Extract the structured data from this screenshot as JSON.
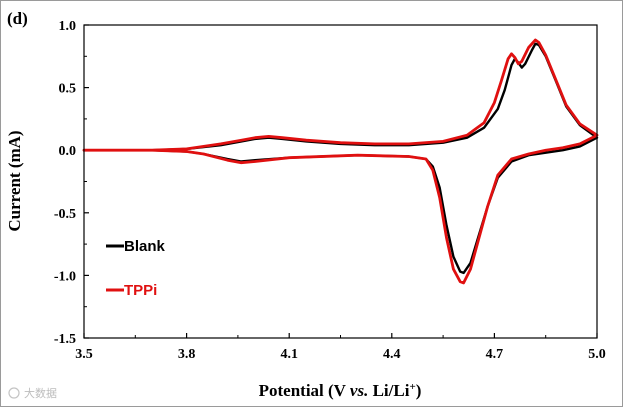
{
  "chart_data": {
    "type": "line",
    "panel_label": "(d)",
    "xlabel_parts": [
      "Potential (V ",
      "vs.",
      " Li/Li",
      "+",
      ")"
    ],
    "ylabel": "Current  (mA)",
    "xlim": [
      3.5,
      5.0
    ],
    "ylim": [
      -1.5,
      1.0
    ],
    "x_ticks": [
      3.5,
      3.8,
      4.1,
      4.4,
      4.7,
      5.0
    ],
    "x_tick_labels": [
      "3.5",
      "3.8",
      "4.1",
      "4.4",
      "4.7",
      "5.0"
    ],
    "y_ticks": [
      -1.5,
      -1.0,
      -0.5,
      0.0,
      0.5,
      1.0
    ],
    "y_tick_labels": [
      "-1.5",
      "-1.0",
      "-0.5",
      "0.0",
      "0.5",
      "1.0"
    ],
    "grid": false,
    "legend_position": "lower-left",
    "series": [
      {
        "name": "Blank",
        "color": "#000000",
        "anodic": [
          [
            3.5,
            0.0
          ],
          [
            3.7,
            0.0
          ],
          [
            3.8,
            0.01
          ],
          [
            3.9,
            0.04
          ],
          [
            3.96,
            0.07
          ],
          [
            4.0,
            0.09
          ],
          [
            4.04,
            0.1
          ],
          [
            4.08,
            0.09
          ],
          [
            4.15,
            0.07
          ],
          [
            4.25,
            0.05
          ],
          [
            4.35,
            0.04
          ],
          [
            4.45,
            0.04
          ],
          [
            4.55,
            0.06
          ],
          [
            4.62,
            0.1
          ],
          [
            4.67,
            0.18
          ],
          [
            4.71,
            0.33
          ],
          [
            4.73,
            0.48
          ],
          [
            4.75,
            0.68
          ],
          [
            4.76,
            0.73
          ],
          [
            4.77,
            0.7
          ],
          [
            4.78,
            0.66
          ],
          [
            4.79,
            0.69
          ],
          [
            4.81,
            0.8
          ],
          [
            4.82,
            0.85
          ],
          [
            4.83,
            0.84
          ],
          [
            4.85,
            0.75
          ],
          [
            4.88,
            0.55
          ],
          [
            4.91,
            0.35
          ],
          [
            4.95,
            0.2
          ],
          [
            5.0,
            0.1
          ]
        ],
        "cathodic": [
          [
            5.0,
            0.1
          ],
          [
            4.95,
            0.03
          ],
          [
            4.9,
            0.0
          ],
          [
            4.85,
            -0.02
          ],
          [
            4.8,
            -0.04
          ],
          [
            4.75,
            -0.09
          ],
          [
            4.71,
            -0.22
          ],
          [
            4.68,
            -0.45
          ],
          [
            4.65,
            -0.72
          ],
          [
            4.63,
            -0.9
          ],
          [
            4.61,
            -0.98
          ],
          [
            4.6,
            -0.97
          ],
          [
            4.58,
            -0.85
          ],
          [
            4.56,
            -0.6
          ],
          [
            4.54,
            -0.3
          ],
          [
            4.52,
            -0.13
          ],
          [
            4.5,
            -0.07
          ],
          [
            4.45,
            -0.05
          ],
          [
            4.3,
            -0.04
          ],
          [
            4.1,
            -0.06
          ],
          [
            4.0,
            -0.08
          ],
          [
            3.96,
            -0.09
          ],
          [
            3.92,
            -0.07
          ],
          [
            3.85,
            -0.03
          ],
          [
            3.8,
            -0.01
          ],
          [
            3.7,
            0.0
          ],
          [
            3.5,
            0.0
          ]
        ]
      },
      {
        "name": "TPPi",
        "color": "#e01010",
        "anodic": [
          [
            3.5,
            0.0
          ],
          [
            3.7,
            0.0
          ],
          [
            3.8,
            0.01
          ],
          [
            3.9,
            0.05
          ],
          [
            3.96,
            0.08
          ],
          [
            4.0,
            0.1
          ],
          [
            4.04,
            0.11
          ],
          [
            4.08,
            0.1
          ],
          [
            4.15,
            0.08
          ],
          [
            4.25,
            0.06
          ],
          [
            4.35,
            0.05
          ],
          [
            4.45,
            0.05
          ],
          [
            4.55,
            0.07
          ],
          [
            4.62,
            0.12
          ],
          [
            4.67,
            0.22
          ],
          [
            4.7,
            0.38
          ],
          [
            4.72,
            0.55
          ],
          [
            4.74,
            0.73
          ],
          [
            4.75,
            0.77
          ],
          [
            4.76,
            0.74
          ],
          [
            4.77,
            0.69
          ],
          [
            4.78,
            0.71
          ],
          [
            4.8,
            0.82
          ],
          [
            4.82,
            0.88
          ],
          [
            4.83,
            0.86
          ],
          [
            4.85,
            0.76
          ],
          [
            4.88,
            0.56
          ],
          [
            4.91,
            0.36
          ],
          [
            4.95,
            0.21
          ],
          [
            5.0,
            0.12
          ]
        ],
        "cathodic": [
          [
            5.0,
            0.12
          ],
          [
            4.95,
            0.05
          ],
          [
            4.9,
            0.02
          ],
          [
            4.85,
            0.0
          ],
          [
            4.8,
            -0.03
          ],
          [
            4.75,
            -0.07
          ],
          [
            4.71,
            -0.2
          ],
          [
            4.68,
            -0.45
          ],
          [
            4.65,
            -0.75
          ],
          [
            4.63,
            -0.95
          ],
          [
            4.61,
            -1.06
          ],
          [
            4.6,
            -1.05
          ],
          [
            4.58,
            -0.95
          ],
          [
            4.56,
            -0.7
          ],
          [
            4.54,
            -0.38
          ],
          [
            4.52,
            -0.16
          ],
          [
            4.5,
            -0.07
          ],
          [
            4.45,
            -0.05
          ],
          [
            4.3,
            -0.04
          ],
          [
            4.1,
            -0.06
          ],
          [
            4.0,
            -0.09
          ],
          [
            3.96,
            -0.1
          ],
          [
            3.92,
            -0.08
          ],
          [
            3.85,
            -0.03
          ],
          [
            3.8,
            -0.01
          ],
          [
            3.7,
            0.0
          ],
          [
            3.5,
            0.0
          ]
        ]
      }
    ]
  },
  "watermark": "大数据"
}
